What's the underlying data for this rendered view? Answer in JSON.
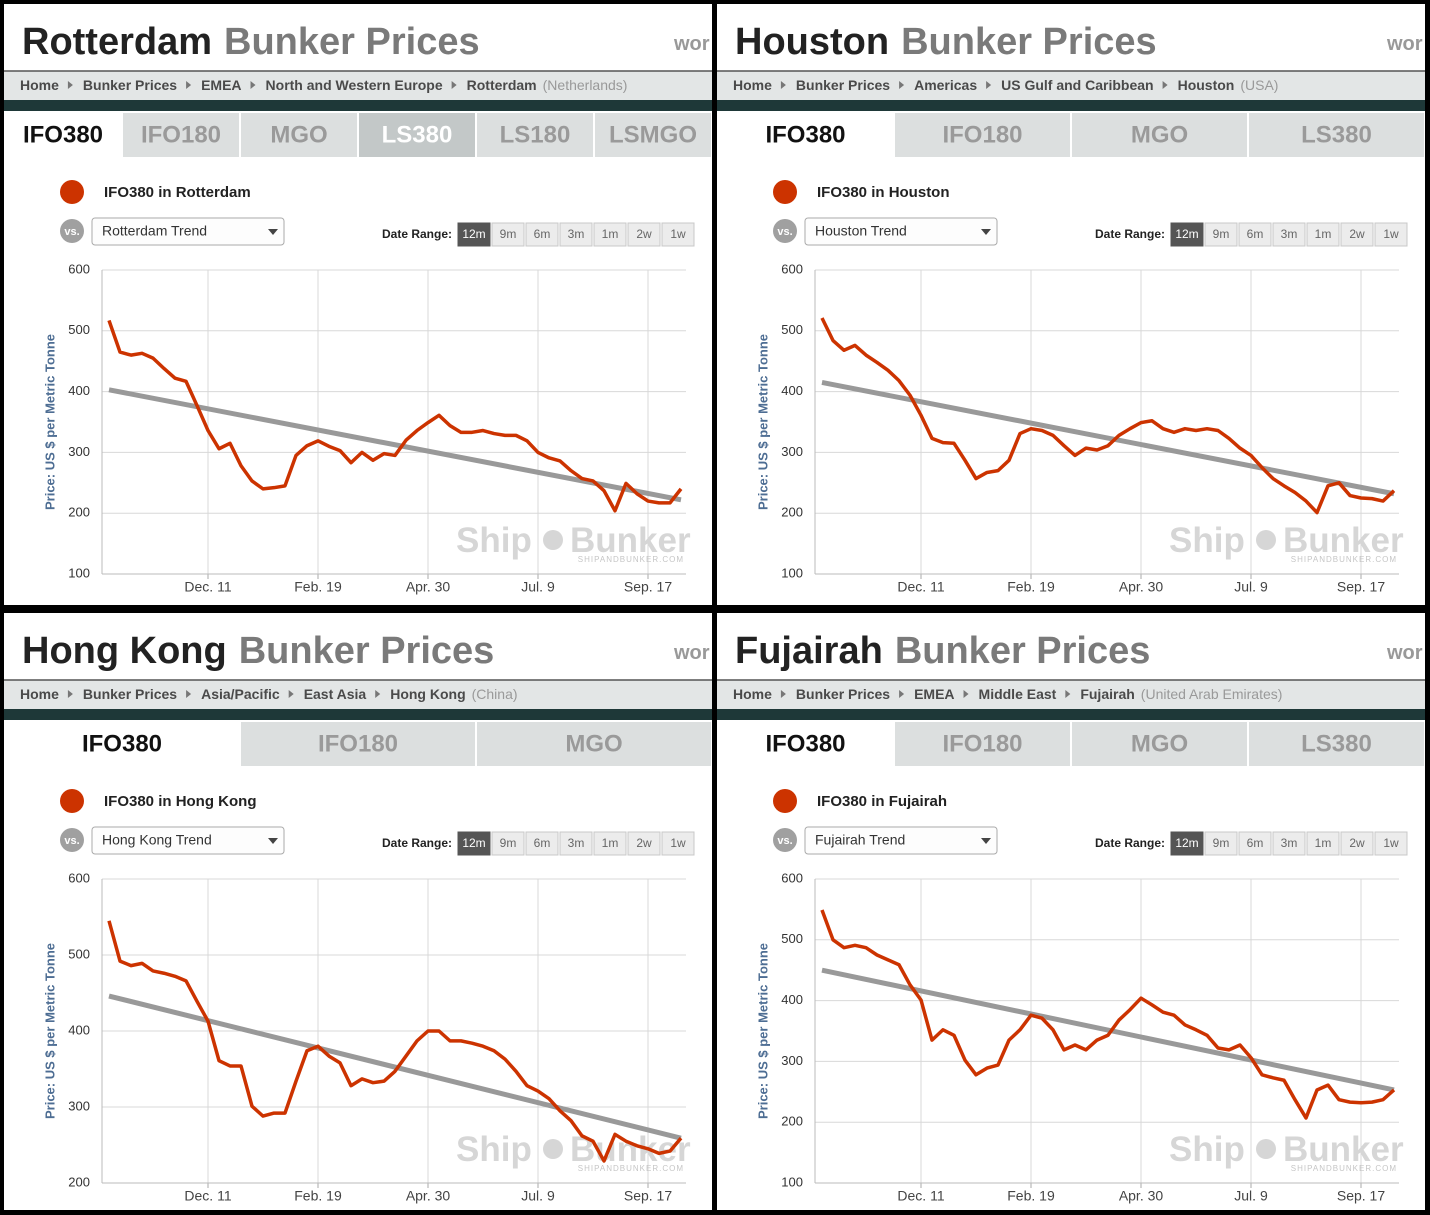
{
  "panels": [
    {
      "header": {
        "city": "Rotterdam",
        "title": "Bunker Prices",
        "cut": "wor"
      },
      "breadcrumbs": [
        "Home",
        "Bunker Prices",
        "EMEA",
        "North and Western Europe",
        "Rotterdam"
      ],
      "country": "(Netherlands)",
      "tabs": [
        "IFO380",
        "IFO180",
        "MGO",
        "LS380",
        "LS180",
        "LSMGO"
      ],
      "active_tab": 0,
      "highlighted_tab": 3,
      "vs": "vs.",
      "date_range_label": "Date Range:",
      "ranges": [
        "12m",
        "9m",
        "6m",
        "3m",
        "1m",
        "2w",
        "1w"
      ],
      "active_range": 0,
      "watermark": [
        "Ship",
        "Bunker"
      ],
      "watermark_url": "SHIPANDBUNKER.COM"
    },
    {
      "header": {
        "city": "Houston",
        "title": "Bunker Prices",
        "cut": "wor"
      },
      "breadcrumbs": [
        "Home",
        "Bunker Prices",
        "Americas",
        "US Gulf and Caribbean",
        "Houston"
      ],
      "country": "(USA)",
      "tabs": [
        "IFO380",
        "IFO180",
        "MGO",
        "LS380"
      ],
      "active_tab": 0,
      "vs": "vs.",
      "date_range_label": "Date Range:",
      "ranges": [
        "12m",
        "9m",
        "6m",
        "3m",
        "1m",
        "2w",
        "1w"
      ],
      "active_range": 0,
      "watermark": [
        "Ship",
        "Bunker"
      ],
      "watermark_url": "SHIPANDBUNKER.COM"
    },
    {
      "header": {
        "city": "Hong Kong",
        "title": "Bunker Prices",
        "cut": "wor"
      },
      "breadcrumbs": [
        "Home",
        "Bunker Prices",
        "Asia/Pacific",
        "East Asia",
        "Hong Kong"
      ],
      "country": "(China)",
      "tabs": [
        "IFO380",
        "IFO180",
        "MGO"
      ],
      "active_tab": 0,
      "vs": "vs.",
      "date_range_label": "Date Range:",
      "ranges": [
        "12m",
        "9m",
        "6m",
        "3m",
        "1m",
        "2w",
        "1w"
      ],
      "active_range": 0,
      "watermark": [
        "Ship",
        "Bunker"
      ],
      "watermark_url": "SHIPANDBUNKER.COM"
    },
    {
      "header": {
        "city": "Fujairah",
        "title": "Bunker Prices",
        "cut": "wor"
      },
      "breadcrumbs": [
        "Home",
        "Bunker Prices",
        "EMEA",
        "Middle East",
        "Fujairah"
      ],
      "country": "(United Arab Emirates)",
      "tabs": [
        "IFO380",
        "IFO180",
        "MGO",
        "LS380"
      ],
      "active_tab": 0,
      "vs": "vs.",
      "date_range_label": "Date Range:",
      "ranges": [
        "12m",
        "9m",
        "6m",
        "3m",
        "1m",
        "2w",
        "1w"
      ],
      "active_range": 0,
      "watermark": [
        "Ship",
        "Bunker"
      ],
      "watermark_url": "SHIPANDBUNKER.COM"
    }
  ],
  "chart_data": [
    {
      "type": "line",
      "y_label": "Price: US $ per Metric Tonne",
      "grid": true,
      "categories": [
        null,
        null,
        null,
        null,
        null,
        null,
        null,
        null,
        null,
        "Dec. 11",
        null,
        null,
        null,
        null,
        null,
        null,
        null,
        null,
        null,
        "Feb. 19",
        null,
        null,
        null,
        null,
        null,
        null,
        null,
        null,
        null,
        "Apr. 30",
        null,
        null,
        null,
        null,
        null,
        null,
        null,
        null,
        null,
        "Jul. 9",
        null,
        null,
        null,
        null,
        null,
        null,
        null,
        null,
        null,
        "Sep. 17",
        null,
        null,
        null
      ],
      "series": [
        {
          "name": "IFO380 in Rotterdam",
          "color": "#cc3300",
          "values": [
            517,
            465,
            460,
            463,
            455,
            438,
            422,
            417,
            377,
            336,
            306,
            315,
            278,
            253,
            240,
            242,
            245,
            295,
            311,
            319,
            310,
            303,
            283,
            300,
            287,
            298,
            295,
            320,
            336,
            349,
            361,
            344,
            333,
            333,
            336,
            331,
            328,
            328,
            319,
            300,
            291,
            286,
            270,
            257,
            253,
            237,
            204,
            249,
            232,
            220,
            217,
            217,
            240
          ]
        }
      ],
      "trend": {
        "name": "Rotterdam Trend",
        "color": "#999999",
        "values": [
          403,
          222
        ]
      },
      "ylim": [
        100,
        600
      ],
      "yticks": [
        100,
        200,
        300,
        400,
        500,
        600
      ]
    },
    {
      "type": "line",
      "y_label": "Price: US $ per Metric Tonne",
      "grid": true,
      "categories": [
        null,
        null,
        null,
        null,
        null,
        null,
        null,
        null,
        null,
        "Dec. 11",
        null,
        null,
        null,
        null,
        null,
        null,
        null,
        null,
        null,
        "Feb. 19",
        null,
        null,
        null,
        null,
        null,
        null,
        null,
        null,
        null,
        "Apr. 30",
        null,
        null,
        null,
        null,
        null,
        null,
        null,
        null,
        null,
        "Jul. 9",
        null,
        null,
        null,
        null,
        null,
        null,
        null,
        null,
        null,
        "Sep. 17",
        null,
        null,
        null
      ],
      "series": [
        {
          "name": "IFO380 in Houston",
          "color": "#cc3300",
          "values": [
            521,
            484,
            468,
            476,
            460,
            448,
            435,
            418,
            394,
            361,
            323,
            316,
            315,
            287,
            257,
            267,
            270,
            287,
            331,
            339,
            336,
            328,
            311,
            295,
            307,
            304,
            311,
            328,
            339,
            349,
            352,
            339,
            333,
            339,
            336,
            339,
            336,
            323,
            307,
            295,
            275,
            257,
            245,
            234,
            220,
            201,
            245,
            250,
            229,
            225,
            224,
            220,
            237
          ]
        }
      ],
      "trend": {
        "name": "Houston Trend",
        "color": "#999999",
        "values": [
          415,
          232
        ]
      },
      "ylim": [
        100,
        600
      ],
      "yticks": [
        100,
        200,
        300,
        400,
        500,
        600
      ]
    },
    {
      "type": "line",
      "y_label": "Price: US $ per Metric Tonne",
      "grid": true,
      "categories": [
        null,
        null,
        null,
        null,
        null,
        null,
        null,
        null,
        null,
        "Dec. 11",
        null,
        null,
        null,
        null,
        null,
        null,
        null,
        null,
        null,
        "Feb. 19",
        null,
        null,
        null,
        null,
        null,
        null,
        null,
        null,
        null,
        "Apr. 30",
        null,
        null,
        null,
        null,
        null,
        null,
        null,
        null,
        null,
        "Jul. 9",
        null,
        null,
        null,
        null,
        null,
        null,
        null,
        null,
        null,
        "Sep. 17",
        null,
        null,
        null
      ],
      "series": [
        {
          "name": "IFO380 in Hong Kong",
          "color": "#cc3300",
          "values": [
            545,
            492,
            486,
            489,
            479,
            476,
            472,
            466,
            439,
            413,
            361,
            354,
            354,
            301,
            288,
            292,
            292,
            334,
            374,
            380,
            367,
            358,
            328,
            337,
            332,
            334,
            347,
            367,
            387,
            400,
            400,
            387,
            387,
            384,
            380,
            374,
            363,
            347,
            328,
            321,
            311,
            295,
            282,
            262,
            255,
            229,
            264,
            255,
            249,
            245,
            239,
            242,
            259
          ]
        }
      ],
      "trend": {
        "name": "Hong Kong Trend",
        "color": "#999999",
        "values": [
          446,
          259
        ]
      },
      "ylim": [
        200,
        600
      ],
      "yticks": [
        200,
        300,
        400,
        500,
        600
      ]
    },
    {
      "type": "line",
      "y_label": "Price: US $ per Metric Tonne",
      "grid": true,
      "categories": [
        null,
        null,
        null,
        null,
        null,
        null,
        null,
        null,
        null,
        "Dec. 11",
        null,
        null,
        null,
        null,
        null,
        null,
        null,
        null,
        null,
        "Feb. 19",
        null,
        null,
        null,
        null,
        null,
        null,
        null,
        null,
        null,
        "Apr. 30",
        null,
        null,
        null,
        null,
        null,
        null,
        null,
        null,
        null,
        "Jul. 9",
        null,
        null,
        null,
        null,
        null,
        null,
        null,
        null,
        null,
        "Sep. 17",
        null,
        null,
        null
      ],
      "series": [
        {
          "name": "IFO380 in Fujairah",
          "color": "#cc3300",
          "values": [
            549,
            500,
            487,
            491,
            487,
            475,
            467,
            459,
            426,
            401,
            335,
            352,
            343,
            302,
            278,
            289,
            294,
            335,
            352,
            376,
            371,
            352,
            319,
            327,
            319,
            335,
            343,
            368,
            385,
            404,
            393,
            381,
            376,
            360,
            352,
            343,
            322,
            319,
            327,
            306,
            278,
            273,
            269,
            237,
            207,
            253,
            261,
            237,
            233,
            232,
            233,
            237,
            253
          ]
        }
      ],
      "trend": {
        "name": "Fujairah Trend",
        "color": "#999999",
        "values": [
          450,
          253
        ]
      },
      "ylim": [
        100,
        600
      ],
      "yticks": [
        100,
        200,
        300,
        400,
        500,
        600
      ]
    }
  ]
}
